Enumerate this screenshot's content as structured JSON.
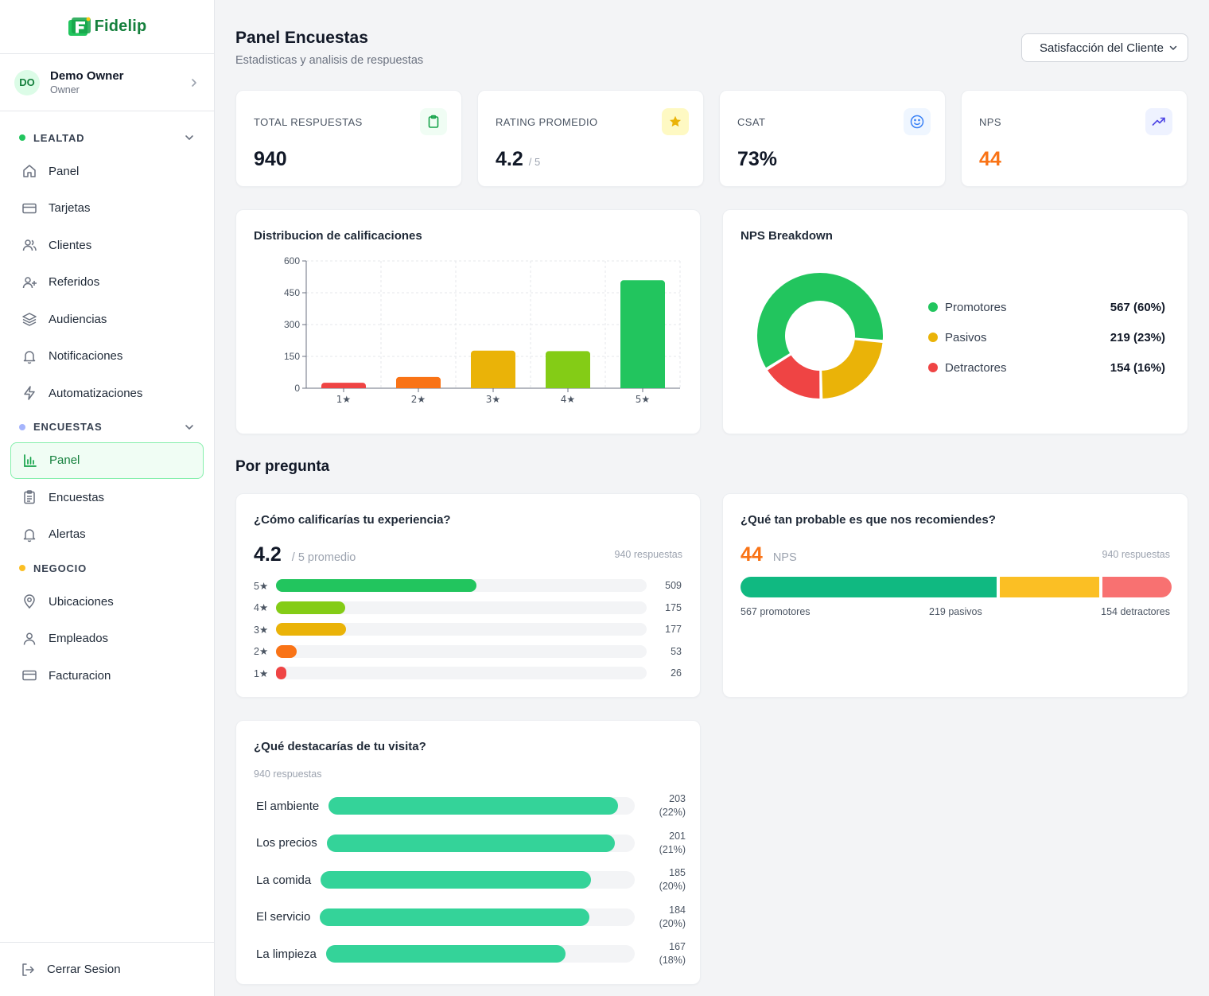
{
  "app": {
    "brand": "Fidelip"
  },
  "user": {
    "initials": "DO",
    "name": "Demo Owner",
    "role": "Owner"
  },
  "sidebar": {
    "sections": [
      {
        "label": "LEALTAD",
        "color": "#22c55e",
        "items": [
          "Panel",
          "Tarjetas",
          "Clientes",
          "Referidos",
          "Audiencias",
          "Notificaciones",
          "Automatizaciones"
        ]
      },
      {
        "label": "ENCUESTAS",
        "color": "#a5b4fc",
        "items": [
          "Panel",
          "Encuestas",
          "Alertas"
        ]
      },
      {
        "label": "NEGOCIO",
        "color": "#fbbf24",
        "items": [
          "Ubicaciones",
          "Empleados",
          "Facturacion"
        ]
      }
    ],
    "active_item": "Panel (Encuestas)",
    "logout_label": "Cerrar Sesion"
  },
  "header": {
    "title": "Panel Encuestas",
    "subtitle": "Estadisticas y analisis de respuestas",
    "survey_select": "Satisfacción del Cliente"
  },
  "stats": [
    {
      "label": "TOTAL RESPUESTAS",
      "value": "940",
      "suffix": "",
      "icon": "clipboard-icon"
    },
    {
      "label": "RATING PROMEDIO",
      "value": "4.2",
      "suffix": "/ 5",
      "icon": "star-icon"
    },
    {
      "label": "CSAT",
      "value": "73%",
      "suffix": "",
      "icon": "smile-icon"
    },
    {
      "label": "NPS",
      "value": "44",
      "suffix": "",
      "icon": "trending-up-icon",
      "value_color": "#f97316"
    }
  ],
  "rating_chart": {
    "title": "Distribucion de calificaciones",
    "chart_data": {
      "type": "bar",
      "categories": [
        "1★",
        "2★",
        "3★",
        "4★",
        "5★"
      ],
      "values": [
        26,
        53,
        177,
        175,
        509
      ],
      "colors": [
        "#ef4444",
        "#f97316",
        "#eab308",
        "#84cc16",
        "#22c55e"
      ],
      "yticks": [
        "0",
        "150",
        "300",
        "450",
        "600"
      ],
      "ylim": [
        0,
        600
      ],
      "grid": true
    }
  },
  "nps_breakdown": {
    "title": "NPS Breakdown",
    "chart_data": {
      "type": "pie",
      "slices": [
        {
          "name": "Promotores",
          "value": 567,
          "label": "567 (60%)",
          "color": "#22c55e"
        },
        {
          "name": "Pasivos",
          "value": 219,
          "label": "219 (23%)",
          "color": "#eab308"
        },
        {
          "name": "Detractores",
          "value": 154,
          "label": "154 (16%)",
          "color": "#ef4444"
        }
      ]
    }
  },
  "by_question": {
    "heading": "Por pregunta",
    "q1": {
      "title": "¿Cómo calificarías tu experiencia?",
      "big_value": "4.2",
      "big_sub": "/ 5 promedio",
      "responses": "940 respuestas",
      "rows": [
        {
          "label": "5★",
          "count": "509",
          "value": 509,
          "color": "#22c55e"
        },
        {
          "label": "4★",
          "count": "175",
          "value": 175,
          "color": "#84cc16"
        },
        {
          "label": "3★",
          "count": "177",
          "value": 177,
          "color": "#eab308"
        },
        {
          "label": "2★",
          "count": "53",
          "value": 53,
          "color": "#f97316"
        },
        {
          "label": "1★",
          "count": "26",
          "value": 26,
          "color": "#ef4444"
        }
      ]
    },
    "q2": {
      "title": "¿Qué tan probable es que nos recomiendes?",
      "big_value": "44",
      "big_sub": "NPS",
      "responses": "940 respuestas",
      "segments": [
        {
          "value": 567,
          "color": "#10b981",
          "caption": "567 promotores"
        },
        {
          "value": 219,
          "color": "#fbbf24",
          "caption": "219 pasivos"
        },
        {
          "value": 154,
          "color": "#f87171",
          "caption": "154 detractores"
        }
      ]
    },
    "q3": {
      "title": "¿Qué destacarías de tu visita?",
      "responses": "940 respuestas",
      "rows": [
        {
          "label": "El ambiente",
          "count": "203",
          "pct": "(22%)",
          "value": 203
        },
        {
          "label": "Los precios",
          "count": "201",
          "pct": "(21%)",
          "value": 201
        },
        {
          "label": "La comida",
          "count": "185",
          "pct": "(20%)",
          "value": 185
        },
        {
          "label": "El servicio",
          "count": "184",
          "pct": "(20%)",
          "value": 184
        },
        {
          "label": "La limpieza",
          "count": "167",
          "pct": "(18%)",
          "value": 167
        }
      ]
    }
  }
}
